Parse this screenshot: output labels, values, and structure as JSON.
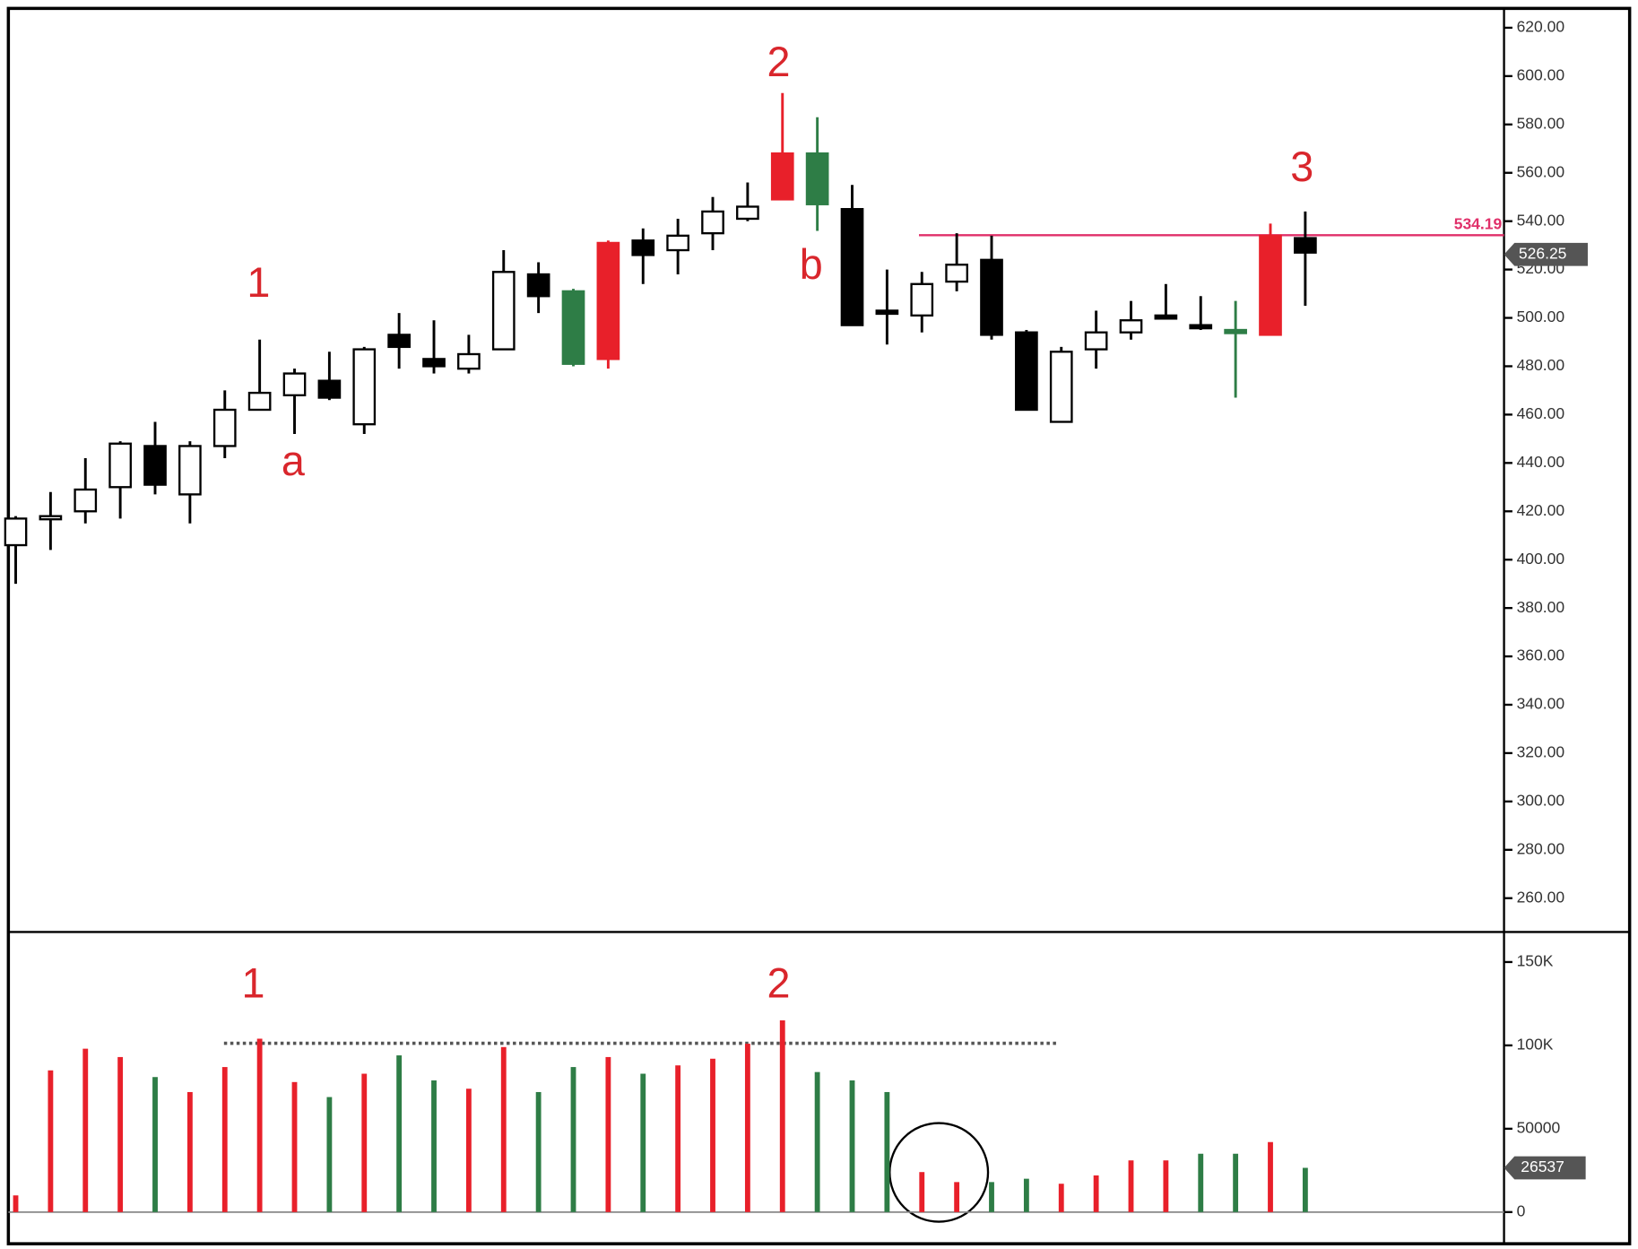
{
  "chart_data": [
    {
      "type": "candlestick",
      "open": [
        406,
        417,
        420,
        430,
        447,
        427,
        447,
        462,
        468,
        474,
        456,
        493,
        483,
        479,
        487,
        518,
        511,
        483,
        532,
        528,
        535,
        541,
        549,
        568,
        545,
        503,
        501,
        515,
        524,
        494,
        457,
        487,
        494,
        501,
        497,
        495,
        493,
        533
      ],
      "high": [
        418,
        428,
        442,
        449,
        457,
        449,
        470,
        491,
        479,
        486,
        488,
        502,
        499,
        493,
        528,
        523,
        512,
        532,
        537,
        541,
        550,
        556,
        593,
        583,
        555,
        520,
        519,
        535,
        534,
        495,
        488,
        503,
        507,
        514,
        509,
        507,
        539,
        544
      ],
      "low": [
        390,
        404,
        415,
        417,
        427,
        415,
        442,
        462,
        452,
        466,
        452,
        479,
        477,
        477,
        487,
        502,
        480,
        479,
        514,
        518,
        528,
        540,
        549,
        536,
        497,
        489,
        494,
        511,
        491,
        462,
        457,
        479,
        491,
        500,
        495,
        467,
        493,
        505
      ],
      "close": [
        417,
        418,
        429,
        448,
        431,
        447,
        462,
        469,
        477,
        467,
        487,
        488,
        480,
        485,
        519,
        509,
        481,
        531,
        526,
        534,
        544,
        546,
        568,
        547,
        497,
        502,
        514,
        522,
        493,
        462,
        486,
        494,
        499,
        500,
        496,
        494,
        534,
        527
      ],
      "colors": [
        "#ffffff",
        "#ffffff",
        "#ffffff",
        "#ffffff",
        "#000000",
        "#ffffff",
        "#ffffff",
        "#ffffff",
        "#ffffff",
        "#000000",
        "#ffffff",
        "#000000",
        "#000000",
        "#ffffff",
        "#ffffff",
        "#000000",
        "#2e7d46",
        "#e8202a",
        "#000000",
        "#ffffff",
        "#ffffff",
        "#ffffff",
        "#e8202a",
        "#2e7d46",
        "#000000",
        "#000000",
        "#ffffff",
        "#ffffff",
        "#000000",
        "#000000",
        "#ffffff",
        "#ffffff",
        "#ffffff",
        "#000000",
        "#000000",
        "#2e7d46",
        "#e8202a",
        "#000000"
      ],
      "ylim": [
        246,
        628
      ],
      "yticks": [
        {
          "value": 620,
          "label": "620.00"
        },
        {
          "value": 600,
          "label": "600.00"
        },
        {
          "value": 580,
          "label": "580.00"
        },
        {
          "value": 560,
          "label": "560.00"
        },
        {
          "value": 540,
          "label": "540.00"
        },
        {
          "value": 520,
          "label": "520.00"
        },
        {
          "value": 500,
          "label": "500.00"
        },
        {
          "value": 480,
          "label": "480.00"
        },
        {
          "value": 460,
          "label": "460.00"
        },
        {
          "value": 440,
          "label": "440.00"
        },
        {
          "value": 420,
          "label": "420.00"
        },
        {
          "value": 400,
          "label": "400.00"
        },
        {
          "value": 380,
          "label": "380.00"
        },
        {
          "value": 360,
          "label": "360.00"
        },
        {
          "value": 340,
          "label": "340.00"
        },
        {
          "value": 320,
          "label": "320.00"
        },
        {
          "value": 300,
          "label": "300.00"
        },
        {
          "value": 280,
          "label": "280.00"
        },
        {
          "value": 260,
          "label": "260.00"
        }
      ],
      "resistance": 534.19,
      "resistance_color": "#e0306a",
      "last_price": 526.25,
      "annotations": [
        "1",
        "a",
        "2",
        "b",
        "3"
      ]
    },
    {
      "type": "bar",
      "values": [
        10000,
        85000,
        98000,
        93000,
        81000,
        72000,
        87000,
        104000,
        78000,
        69000,
        83000,
        94000,
        79000,
        74000,
        99000,
        72000,
        87000,
        93000,
        83000,
        88000,
        92000,
        101000,
        115000,
        84000,
        79000,
        72000,
        24000,
        18000,
        18000,
        20000,
        17000,
        22000,
        31000,
        31000,
        35000,
        35000,
        42000,
        26537
      ],
      "colors": [
        "#e8202a",
        "#e8202a",
        "#e8202a",
        "#e8202a",
        "#2e7d46",
        "#e8202a",
        "#e8202a",
        "#e8202a",
        "#e8202a",
        "#2e7d46",
        "#e8202a",
        "#2e7d46",
        "#2e7d46",
        "#e8202a",
        "#e8202a",
        "#2e7d46",
        "#2e7d46",
        "#e8202a",
        "#2e7d46",
        "#e8202a",
        "#e8202a",
        "#e8202a",
        "#e8202a",
        "#2e7d46",
        "#2e7d46",
        "#2e7d46",
        "#e8202a",
        "#e8202a",
        "#2e7d46",
        "#2e7d46",
        "#e8202a",
        "#e8202a",
        "#e8202a",
        "#e8202a",
        "#2e7d46",
        "#2e7d46",
        "#e8202a",
        "#2e7d46"
      ],
      "ylim": [
        -19000,
        168000
      ],
      "yticks": [
        {
          "value": 150000,
          "label": "150K"
        },
        {
          "value": 100000,
          "label": "100K"
        },
        50000,
        0
      ],
      "last_volume": 26537,
      "annotations": [
        "1",
        "2"
      ]
    }
  ]
}
